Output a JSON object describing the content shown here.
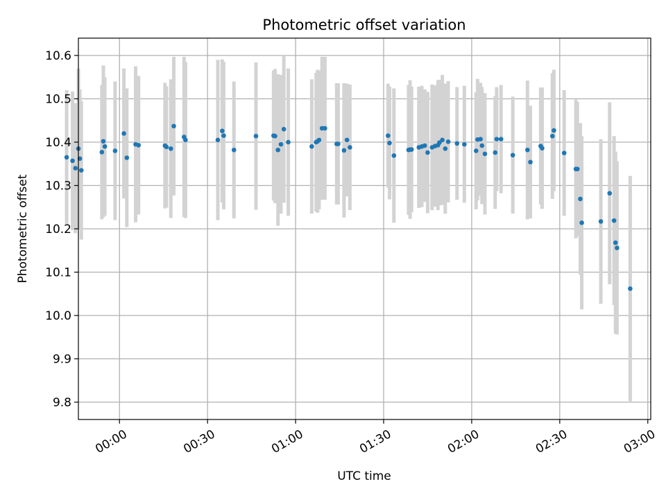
{
  "chart_data": {
    "type": "scatter",
    "title": "Photometric offset variation",
    "xlabel": "UTC time",
    "ylabel": "Photometric offset",
    "grid": true,
    "x_unit": "time of day (HH:MM, UTC)",
    "xlim": [
      "-00:14",
      "03:01"
    ],
    "ylim": [
      9.76,
      10.64
    ],
    "x_ticks": [
      "00:00",
      "00:30",
      "01:00",
      "01:30",
      "02:00",
      "02:30",
      "03:00"
    ],
    "y_ticks": [
      "9.8",
      "9.9",
      "10.0",
      "10.1",
      "10.2",
      "10.3",
      "10.4",
      "10.5",
      "10.6"
    ],
    "colors": {
      "points": "#1f77b4",
      "errorbars": "#d3d3d3",
      "grid": "#b0b0b0"
    },
    "series": [
      {
        "x": [
          "-00:18:00",
          "-00:16:00",
          "-00:15:00",
          "-00:14:00",
          "-00:13:30",
          "-00:13:00",
          "-00:06:00",
          "-00:05:30",
          "-00:05:00",
          "-00:01:30",
          "00:01:30",
          "00:02:30",
          "00:05:30",
          "00:06:30",
          "00:15:30",
          "00:16:00",
          "00:17:30",
          "00:18:30",
          "00:22:00",
          "00:22:30",
          "00:33:30",
          "00:35:00",
          "00:35:30",
          "00:39:00",
          "00:46:30",
          "00:52:30",
          "00:53:00",
          "00:54:00",
          "00:55:00",
          "00:56:00",
          "00:57:30",
          "01:05:30",
          "01:07:00",
          "01:07:30",
          "01:08:00",
          "01:09:00",
          "01:10:00",
          "01:14:00",
          "01:14:30",
          "01:16:30",
          "01:17:30",
          "01:18:30",
          "01:31:30",
          "01:32:00",
          "01:33:30",
          "01:38:30",
          "01:39:00",
          "01:39:30",
          "01:42:00",
          "01:43:00",
          "01:44:00",
          "01:45:00",
          "01:46:30",
          "01:47:30",
          "01:48:30",
          "01:49:00",
          "01:50:00",
          "01:51:00",
          "01:52:00",
          "01:55:00",
          "01:57:30",
          "02:01:30",
          "02:02:00",
          "02:03:00",
          "02:03:30",
          "02:04:30",
          "02:08:00",
          "02:08:30",
          "02:10:00",
          "02:14:00",
          "02:19:00",
          "02:20:00",
          "02:23:30",
          "02:24:00",
          "02:27:30",
          "02:28:00",
          "02:31:30",
          "02:35:30",
          "02:36:00",
          "02:37:00",
          "02:37:30",
          "02:44:00",
          "02:47:00",
          "02:48:30",
          "02:49:00",
          "02:49:30",
          "02:54:00"
        ],
        "y": [
          10.365,
          10.357,
          10.34,
          10.385,
          10.362,
          10.335,
          10.377,
          10.402,
          10.39,
          10.38,
          10.42,
          10.364,
          10.395,
          10.393,
          10.392,
          10.389,
          10.385,
          10.437,
          10.412,
          10.405,
          10.405,
          10.426,
          10.415,
          10.382,
          10.414,
          10.415,
          10.414,
          10.382,
          10.395,
          10.43,
          10.4,
          10.39,
          10.4,
          10.402,
          10.405,
          10.432,
          10.432,
          10.396,
          10.396,
          10.381,
          10.405,
          10.388,
          10.415,
          10.398,
          10.369,
          10.382,
          10.383,
          10.383,
          10.388,
          10.39,
          10.392,
          10.376,
          10.388,
          10.391,
          10.393,
          10.399,
          10.405,
          10.385,
          10.401,
          10.397,
          10.395,
          10.38,
          10.406,
          10.407,
          10.392,
          10.373,
          10.376,
          10.407,
          10.407,
          10.37,
          10.382,
          10.354,
          10.391,
          10.386,
          10.414,
          10.427,
          10.375,
          10.338,
          10.338,
          10.269,
          10.214,
          10.217,
          10.282,
          10.219,
          10.168,
          10.156,
          10.062
        ],
        "y_err": [
          0.155,
          0.16,
          0.15,
          0.185,
          0.16,
          0.16,
          0.155,
          0.175,
          0.16,
          0.16,
          0.15,
          0.16,
          0.18,
          0.16,
          0.145,
          0.14,
          0.16,
          0.16,
          0.185,
          0.18,
          0.185,
          0.165,
          0.17,
          0.158,
          0.17,
          0.15,
          0.155,
          0.175,
          0.16,
          0.17,
          0.17,
          0.155,
          0.16,
          0.165,
          0.16,
          0.165,
          0.165,
          0.14,
          0.14,
          0.155,
          0.13,
          0.145,
          0.12,
          0.13,
          0.155,
          0.15,
          0.16,
          0.145,
          0.14,
          0.14,
          0.13,
          0.14,
          0.145,
          0.14,
          0.15,
          0.145,
          0.15,
          0.15,
          0.14,
          0.13,
          0.135,
          0.135,
          0.14,
          0.13,
          0.135,
          0.14,
          0.13,
          0.12,
          0.125,
          0.135,
          0.16,
          0.13,
          0.135,
          0.14,
          0.145,
          0.14,
          0.145,
          0.16,
          0.155,
          0.175,
          0.2,
          0.19,
          0.21,
          0.195,
          0.21,
          0.2,
          0.26
        ]
      }
    ]
  }
}
